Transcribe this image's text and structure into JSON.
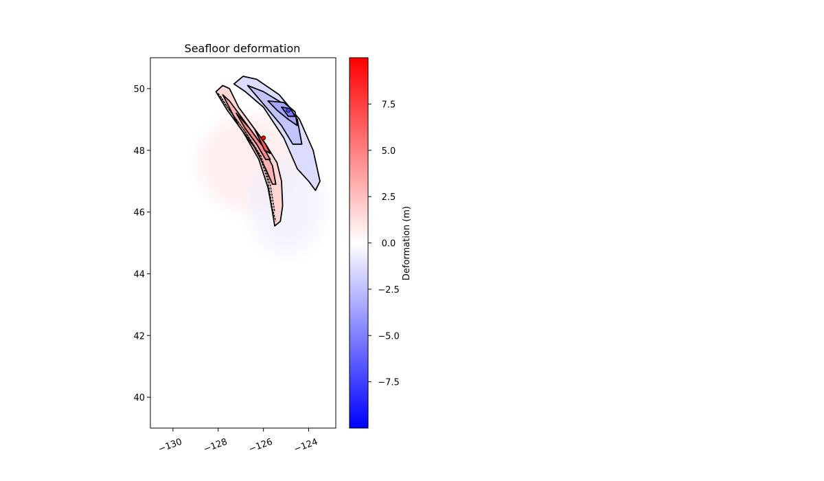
{
  "chart_data": {
    "type": "heatmap",
    "title": "Seafloor deformation",
    "xlabel": "",
    "ylabel": "",
    "xlim": [
      -131,
      -122.8
    ],
    "ylim": [
      39,
      51
    ],
    "x_ticks": [
      -130,
      -128,
      -126,
      -124
    ],
    "x_tick_labels": [
      "−130",
      "−128",
      "−126",
      "−124"
    ],
    "y_ticks": [
      40,
      42,
      44,
      46,
      48,
      50
    ],
    "y_tick_labels": [
      "40",
      "42",
      "44",
      "46",
      "48",
      "50"
    ],
    "colorbar": {
      "label": "Deformation (m)",
      "range": [
        -10,
        10
      ],
      "ticks": [
        -7.5,
        -5.0,
        -2.5,
        0.0,
        2.5,
        5.0,
        7.5
      ],
      "tick_labels": [
        "−7.5",
        "−5.0",
        "−2.5",
        "0.0",
        "2.5",
        "5.0",
        "7.5"
      ],
      "colormap": "bwr",
      "color_low": "#0000ff",
      "color_mid": "#ffffff",
      "color_high": "#ff0000"
    },
    "fields": [
      {
        "name": "uplift",
        "sign": "positive",
        "peak_value": 9.0,
        "peak_location": [
          -126.0,
          48.4
        ],
        "extent_lon": [
          -128.0,
          -125.3
        ],
        "extent_lat": [
          45.6,
          50.0
        ]
      },
      {
        "name": "subsidence",
        "sign": "negative",
        "peak_value": -5.5,
        "peak_location": [
          -124.9,
          49.3
        ],
        "extent_lon": [
          -127.3,
          -123.5
        ],
        "extent_lat": [
          46.7,
          50.4
        ]
      }
    ],
    "grid": false,
    "legend": "none"
  }
}
